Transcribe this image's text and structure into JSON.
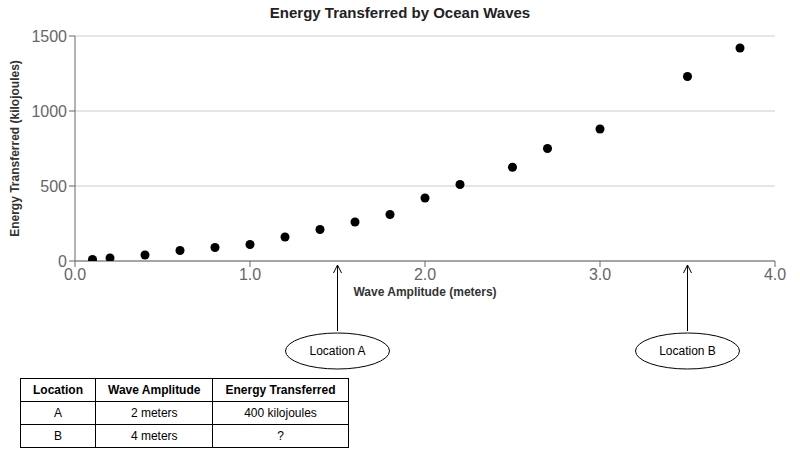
{
  "chart_data": {
    "type": "scatter",
    "title": "Energy Transferred by Ocean Waves",
    "xlabel": "Wave Amplitude (meters)",
    "ylabel": "Energy Transferred (kilojoules)",
    "x": [
      0.1,
      0.2,
      0.4,
      0.6,
      0.8,
      1.0,
      1.2,
      1.4,
      1.6,
      1.8,
      2.0,
      2.2,
      2.5,
      2.7,
      3.0,
      3.5,
      3.8
    ],
    "values": [
      10,
      20,
      40,
      70,
      90,
      110,
      160,
      210,
      260,
      310,
      420,
      510,
      625,
      750,
      880,
      1230,
      1420
    ],
    "color": "black",
    "xlim": [
      0.0,
      4.0
    ],
    "ylim": [
      0,
      1500
    ],
    "xticks": [
      {
        "value": 0,
        "label": "0.0"
      },
      {
        "value": 1,
        "label": "1.0"
      },
      {
        "value": 2,
        "label": "2.0"
      },
      {
        "value": 3,
        "label": "3.0"
      },
      {
        "value": 4,
        "label": "4.0"
      }
    ],
    "yticks": [
      0,
      500,
      1000,
      1500
    ],
    "grid": "y",
    "annotations": [
      {
        "text": "Location A",
        "x": 1.5
      },
      {
        "text": "Location B",
        "x": 3.5
      }
    ],
    "table": {
      "headers": [
        "Location",
        "Wave Amplitude",
        "Energy Transferred"
      ],
      "rows": [
        [
          "A",
          "2 meters",
          "400 kilojoules"
        ],
        [
          "B",
          "4 meters",
          "?"
        ]
      ]
    }
  }
}
